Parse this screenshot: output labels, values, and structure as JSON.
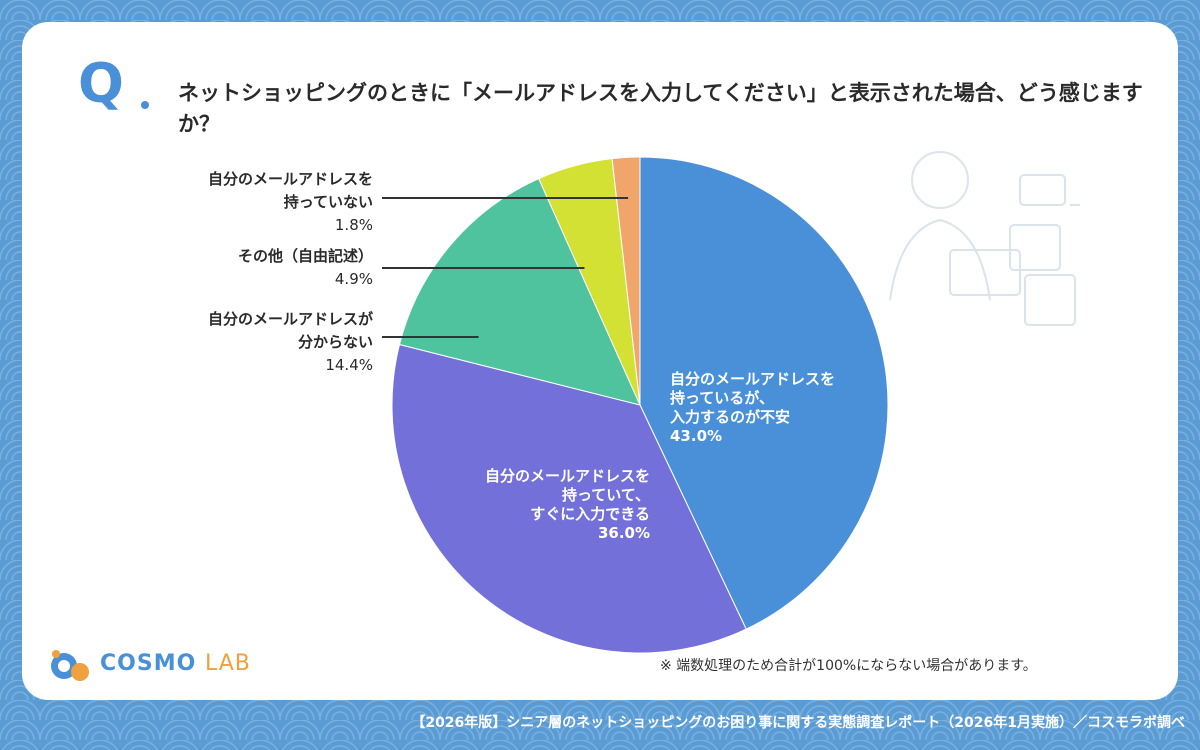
{
  "question": {
    "mark": "Q",
    "text": "ネットショッピングのときに「メールアドレスを入力してください」と表示された場合、どう感じますか？"
  },
  "chart_data": {
    "type": "pie",
    "start_angle": "12 o'clock",
    "direction": "clockwise",
    "slices": [
      {
        "label": "自分のメールアドレスを持っているが、入力するのが不安",
        "label_lines": [
          "自分のメールアドレスを",
          "持っているが、",
          "入力するのが不安"
        ],
        "value": 43.0,
        "value_label": "43.0%",
        "color": "#4a90d9"
      },
      {
        "label": "自分のメールアドレスを持っていて、すぐに入力できる",
        "label_lines": [
          "自分のメールアドレスを",
          "持っていて、",
          "すぐに入力できる"
        ],
        "value": 36.0,
        "value_label": "36.0%",
        "color": "#7371d9"
      },
      {
        "label": "自分のメールアドレスが分からない",
        "label_lines": [
          "自分のメールアドレスが",
          "分からない"
        ],
        "value": 14.4,
        "value_label": "14.4%",
        "color": "#4fc29e"
      },
      {
        "label": "その他（自由記述）",
        "label_lines": [
          "その他（自由記述）"
        ],
        "value": 4.9,
        "value_label": "4.9%",
        "color": "#d3e034"
      },
      {
        "label": "自分のメールアドレスを持っていない",
        "label_lines": [
          "自分のメールアドレスを",
          "持っていない"
        ],
        "value": 1.8,
        "value_label": "1.8%",
        "color": "#f0a66a"
      }
    ]
  },
  "note": "※ 端数処理のため合計が100%にならない場合があります。",
  "footer": "【2026年版】シニア層のネットショッピングのお困り事に関する実態調査レポート（2026年1月実施）／コスモラボ調べ",
  "logo": {
    "main": "COSMO",
    "sub": "LAB"
  }
}
